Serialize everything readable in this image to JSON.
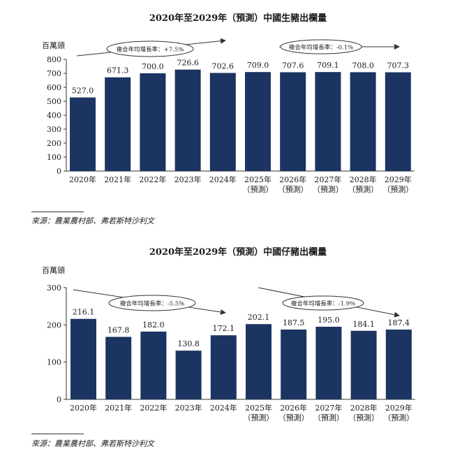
{
  "colors": {
    "bar": "#1b3461",
    "axis": "#333333",
    "text": "#1a1a1a"
  },
  "charts": [
    {
      "title": "2020年至2029年（預測）中國生豬出欄量",
      "unit": "百萬頭",
      "source": "來源：農業農村部、弗若斯特沙利文",
      "cagr_labels": [
        "複合年均增長率：+7.5%",
        "複合年均增長率：-0.1%"
      ]
    },
    {
      "title": "2020年至2029年（預測）中國仔豬出欄量",
      "unit": "百萬頭",
      "source": "來源：農業農村部、弗若斯特沙利文",
      "cagr_labels": [
        "複合年均增長率：-5.5%",
        "複合年均增長率：-1.9%"
      ]
    }
  ],
  "chart_data": [
    {
      "type": "bar",
      "title": "2020年至2029年（預測）中國生豬出欄量",
      "ylabel": "百萬頭",
      "categories": [
        "2020年",
        "2021年",
        "2022年",
        "2023年",
        "2024年",
        "2025年",
        "2026年",
        "2027年",
        "2028年",
        "2029年"
      ],
      "sublabels": [
        "",
        "",
        "",
        "",
        "",
        "（預測）",
        "（預測）",
        "（預測）",
        "（預測）",
        "（預測）"
      ],
      "values": [
        527.0,
        671.3,
        700.0,
        726.6,
        702.6,
        709.0,
        707.6,
        709.1,
        708.0,
        707.3
      ],
      "value_labels": [
        "527.0",
        "671.3",
        "700.0",
        "726.6",
        "702.6",
        "709.0",
        "707.6",
        "709.1",
        "708.0",
        "707.3"
      ],
      "yticks": [
        0,
        100,
        200,
        300,
        400,
        500,
        600,
        700,
        800
      ],
      "ylim": [
        0,
        800
      ],
      "grid": false,
      "legend": "none",
      "annotations": [
        {
          "text": "複合年均增長率：+7.5%",
          "from_category": "2020年",
          "to_category": "2024年"
        },
        {
          "text": "複合年均增長率：-0.1%",
          "from_category": "2025年",
          "to_category": "2029年"
        }
      ]
    },
    {
      "type": "bar",
      "title": "2020年至2029年（預測）中國仔豬出欄量",
      "ylabel": "百萬頭",
      "categories": [
        "2020年",
        "2021年",
        "2022年",
        "2023年",
        "2024年",
        "2025年",
        "2026年",
        "2027年",
        "2028年",
        "2029年"
      ],
      "sublabels": [
        "",
        "",
        "",
        "",
        "",
        "（預測）",
        "（預測）",
        "（預測）",
        "（預測）",
        "（預測）"
      ],
      "values": [
        216.1,
        167.8,
        182.0,
        130.8,
        172.1,
        202.1,
        187.5,
        195.0,
        184.1,
        187.4
      ],
      "value_labels": [
        "216.1",
        "167.8",
        "182.0",
        "130.8",
        "172.1",
        "202.1",
        "187.5",
        "195.0",
        "184.1",
        "187.4"
      ],
      "yticks": [
        0,
        100,
        200,
        300
      ],
      "ylim": [
        0,
        300
      ],
      "grid": false,
      "legend": "none",
      "annotations": [
        {
          "text": "複合年均增長率：-5.5%",
          "from_category": "2020年",
          "to_category": "2024年"
        },
        {
          "text": "複合年均增長率：-1.9%",
          "from_category": "2025年",
          "to_category": "2029年"
        }
      ]
    }
  ]
}
